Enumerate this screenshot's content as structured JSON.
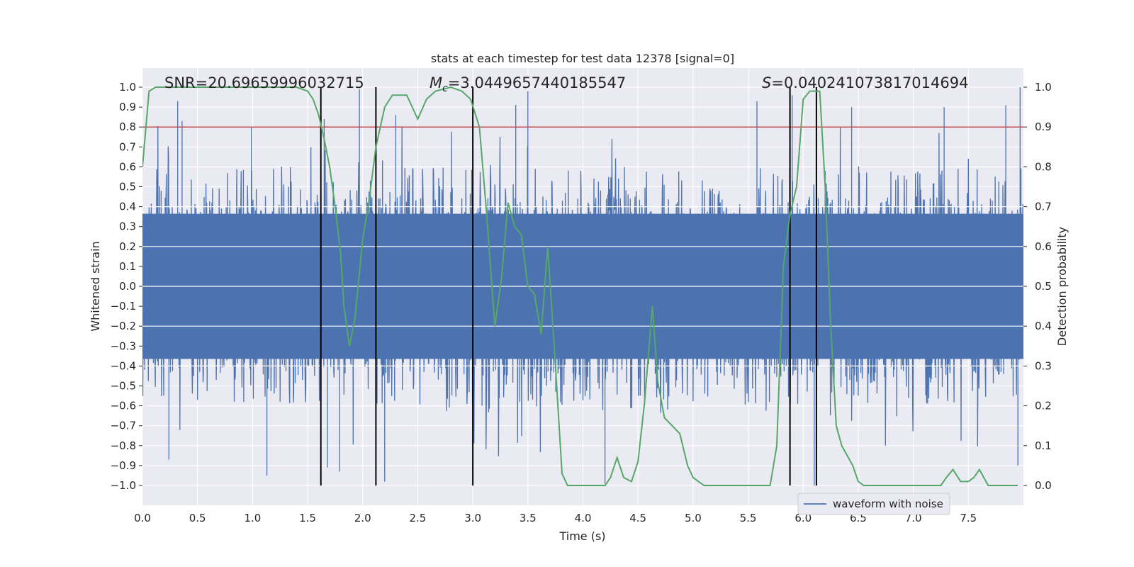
{
  "chart_data": {
    "type": "line",
    "title": "stats at each timestep for test data 12378 [signal=0]",
    "xlabel": "Time (s)",
    "ylabel": "Whitened strain",
    "y2label": "Detection probability",
    "xlim": [
      0.0,
      8.0
    ],
    "ylim": [
      -1.1,
      1.1
    ],
    "y2lim": [
      -0.05,
      1.05
    ],
    "x_ticks": [
      0.0,
      0.5,
      1.0,
      1.5,
      2.0,
      2.5,
      3.0,
      3.5,
      4.0,
      4.5,
      5.0,
      5.5,
      6.0,
      6.5,
      7.0,
      7.5
    ],
    "x_tick_labels": [
      "0.0",
      "0.5",
      "1.0",
      "1.5",
      "2.0",
      "2.5",
      "3.0",
      "3.5",
      "4.0",
      "4.5",
      "5.0",
      "5.5",
      "6.0",
      "6.5",
      "7.0",
      "7.5"
    ],
    "y_ticks": [
      1.0,
      0.9,
      0.8,
      0.7,
      0.6,
      0.5,
      0.4,
      0.3,
      0.2,
      0.1,
      0.0,
      -0.1,
      -0.2,
      -0.3,
      -0.4,
      -0.5,
      -0.6,
      -0.7,
      -0.8,
      -0.9,
      -1.0
    ],
    "y_tick_labels": [
      "1.0",
      "0.9",
      "0.8",
      "0.7",
      "0.6",
      "0.5",
      "0.4",
      "0.3",
      "0.2",
      "0.1",
      "0.0",
      "−0.1",
      "−0.2",
      "−0.3",
      "−0.4",
      "−0.5",
      "−0.6",
      "−0.7",
      "−0.8",
      "−0.9",
      "−1.0"
    ],
    "y2_ticks": [
      1.0,
      0.9,
      0.8,
      0.7,
      0.6,
      0.5,
      0.4,
      0.3,
      0.2,
      0.1,
      0.0
    ],
    "y2_tick_labels": [
      "1.0",
      "0.9",
      "0.8",
      "0.7",
      "0.6",
      "0.5",
      "0.4",
      "0.3",
      "0.2",
      "0.1",
      "0.0"
    ],
    "annotations": {
      "snr": "SNR=20.69659996032715",
      "mc_prefix": "M",
      "mc_sub": "c",
      "mc_value": "=3.0449657440185547",
      "s_prefix": "S",
      "s_value": "=0.040241073817014694"
    },
    "threshold": {
      "y2": 0.9,
      "color": "#c44e52"
    },
    "vertical_lines": [
      1.62,
      2.12,
      3.0,
      5.88,
      6.12
    ],
    "vertical_line_range": [
      0.0,
      1.0
    ],
    "series": [
      {
        "name": "waveform with noise",
        "color": "#4c72b0",
        "note": "dense noisy strain series; envelope values in strain units",
        "envelope_points": [
          0.0,
          0.5,
          1.0,
          1.5,
          2.0,
          2.5,
          3.0,
          3.5,
          4.0,
          4.5,
          5.0,
          5.5,
          6.0,
          6.5,
          7.0,
          7.5,
          8.0
        ],
        "band_upper": 0.4,
        "band_lower": -0.4,
        "spikes": [
          [
            0.32,
            0.93
          ],
          [
            0.36,
            0.83
          ],
          [
            0.99,
            0.8
          ],
          [
            1.62,
            0.82
          ],
          [
            1.65,
            0.84
          ],
          [
            1.97,
            0.99
          ],
          [
            2.3,
            0.86
          ],
          [
            3.39,
            0.91
          ],
          [
            3.5,
            0.98
          ],
          [
            5.58,
            0.93
          ],
          [
            5.9,
            0.96
          ],
          [
            6.44,
            0.9
          ],
          [
            7.28,
            0.9
          ],
          [
            7.84,
            0.91
          ],
          [
            7.97,
            1.0
          ],
          [
            0.24,
            -0.87
          ],
          [
            1.13,
            -0.95
          ],
          [
            1.68,
            -0.91
          ],
          [
            1.79,
            -0.93
          ],
          [
            2.2,
            -0.98
          ],
          [
            3.0,
            -0.92
          ],
          [
            4.2,
            -0.99
          ],
          [
            6.1,
            -1.0
          ],
          [
            7.95,
            -0.9
          ]
        ]
      },
      {
        "name": "detection probability",
        "color": "#55a868",
        "axis": "right",
        "x": [
          0.0,
          0.06,
          0.12,
          0.2,
          0.4,
          0.6,
          0.8,
          1.0,
          1.2,
          1.4,
          1.5,
          1.55,
          1.6,
          1.65,
          1.7,
          1.75,
          1.8,
          1.83,
          1.88,
          1.93,
          2.0,
          2.06,
          2.12,
          2.2,
          2.27,
          2.4,
          2.5,
          2.58,
          2.66,
          2.8,
          2.9,
          2.98,
          3.06,
          3.12,
          3.2,
          3.26,
          3.32,
          3.38,
          3.44,
          3.5,
          3.56,
          3.62,
          3.68,
          3.75,
          3.81,
          3.86,
          3.94,
          4.0,
          4.06,
          4.12,
          4.2,
          4.25,
          4.31,
          4.37,
          4.44,
          4.5,
          4.56,
          4.63,
          4.68,
          4.74,
          4.81,
          4.88,
          4.95,
          5.0,
          5.1,
          5.2,
          5.4,
          5.5,
          5.6,
          5.7,
          5.76,
          5.82,
          5.88,
          5.94,
          6.0,
          6.06,
          6.12,
          6.15,
          6.2,
          6.25,
          6.3,
          6.35,
          6.45,
          6.5,
          6.55,
          6.6,
          6.7,
          6.8,
          7.0,
          7.2,
          7.25,
          7.3,
          7.36,
          7.43,
          7.5,
          7.55,
          7.6,
          7.68,
          7.8,
          7.95
        ],
        "y": [
          0.8,
          0.99,
          1.0,
          1.0,
          1.0,
          1.0,
          1.0,
          1.0,
          1.0,
          1.0,
          0.99,
          0.97,
          0.93,
          0.87,
          0.8,
          0.7,
          0.58,
          0.45,
          0.35,
          0.42,
          0.62,
          0.72,
          0.85,
          0.95,
          0.98,
          0.98,
          0.92,
          0.97,
          0.99,
          1.0,
          0.99,
          0.97,
          0.9,
          0.7,
          0.4,
          0.52,
          0.71,
          0.65,
          0.63,
          0.5,
          0.48,
          0.38,
          0.6,
          0.3,
          0.03,
          0.0,
          0.0,
          0.0,
          0.0,
          0.0,
          0.0,
          0.02,
          0.07,
          0.02,
          0.01,
          0.06,
          0.21,
          0.45,
          0.26,
          0.17,
          0.15,
          0.13,
          0.05,
          0.02,
          0.0,
          0.0,
          0.0,
          0.0,
          0.0,
          0.0,
          0.1,
          0.55,
          0.68,
          0.75,
          0.97,
          0.99,
          0.99,
          0.99,
          0.75,
          0.4,
          0.15,
          0.1,
          0.05,
          0.01,
          0.0,
          0.0,
          0.0,
          0.0,
          0.0,
          0.0,
          0.0,
          0.02,
          0.04,
          0.01,
          0.01,
          0.02,
          0.04,
          0.0,
          0.0,
          0.0
        ]
      }
    ],
    "legend": {
      "label": "waveform with noise",
      "location": "lower-right"
    }
  }
}
